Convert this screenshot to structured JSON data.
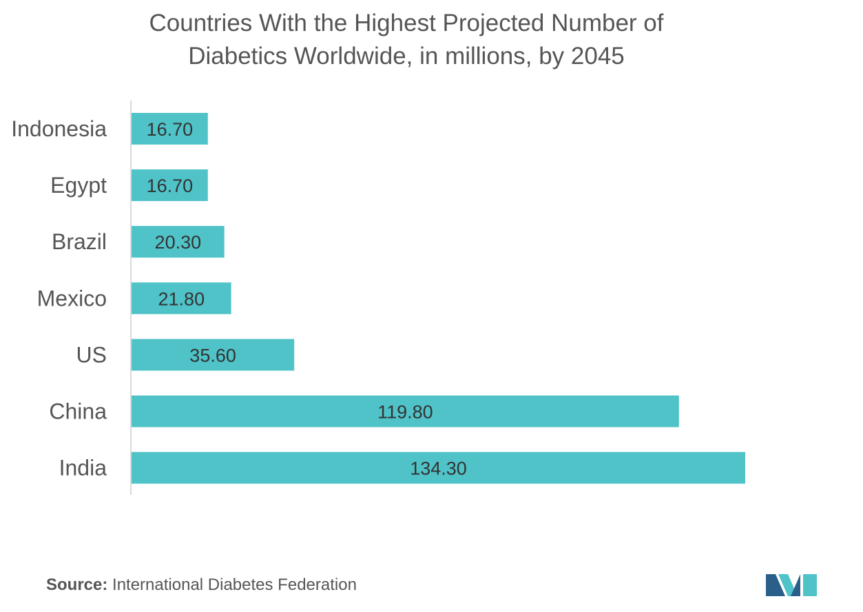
{
  "chart_data": {
    "type": "bar",
    "orientation": "horizontal",
    "title_line1": "Countries With the Highest Projected Number of",
    "title_line2": "Diabetics Worldwide, in millions, by 2045",
    "categories": [
      "Indonesia",
      "Egypt",
      "Brazil",
      "Mexico",
      "US",
      "China",
      "India"
    ],
    "values": [
      16.7,
      16.7,
      20.3,
      21.8,
      35.6,
      119.8,
      134.3
    ],
    "value_labels": [
      "16.70",
      "16.70",
      "20.30",
      "21.80",
      "35.60",
      "119.80",
      "134.30"
    ],
    "xlim": [
      0,
      134.3
    ],
    "grid": false,
    "legend": "none",
    "bar_color": "#4fc3c8"
  },
  "source": {
    "label": "Source:",
    "text": " International Diabetes Federation"
  },
  "colors": {
    "logo_dark": "#2a5f8a",
    "logo_light": "#4fc3c8"
  },
  "logo": {
    "name": "mordor-intelligence-logo"
  }
}
